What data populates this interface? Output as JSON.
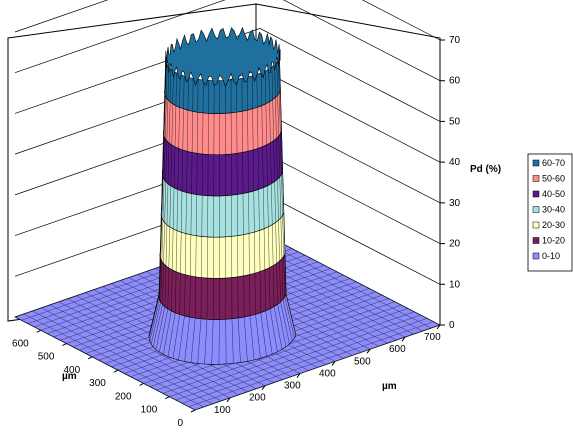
{
  "chart_data": {
    "type": "surface",
    "z_label": "Pd (%)",
    "x_label": "µm",
    "y_label": "µm",
    "z_ticks": [
      "0",
      "10",
      "20",
      "30",
      "40",
      "50",
      "60",
      "70"
    ],
    "x_ticks": [
      "100",
      "200",
      "300",
      "400",
      "500",
      "600",
      "700"
    ],
    "y_ticks": [
      "0",
      "100",
      "200",
      "300",
      "400",
      "500",
      "600"
    ],
    "zlim": [
      0,
      70
    ],
    "xlim": [
      0,
      700
    ],
    "ylim": [
      0,
      700
    ],
    "legend_position": "right",
    "legend": [
      {
        "label": "60-70",
        "color": "#1f6f9f"
      },
      {
        "label": "50-60",
        "color": "#ff8c8c"
      },
      {
        "label": "40-50",
        "color": "#5a1a8a"
      },
      {
        "label": "30-40",
        "color": "#a8e2e0"
      },
      {
        "label": "20-30",
        "color": "#ffffc0"
      },
      {
        "label": "10-20",
        "color": "#7a1f5a"
      },
      {
        "label": "0-10",
        "color": "#8c8cff"
      }
    ],
    "surface": {
      "description_shape": "flat-topped mesa",
      "baseline_value": 0,
      "plateau_value": 68,
      "center_x": 300,
      "center_y": 300,
      "radius": 150
    }
  }
}
